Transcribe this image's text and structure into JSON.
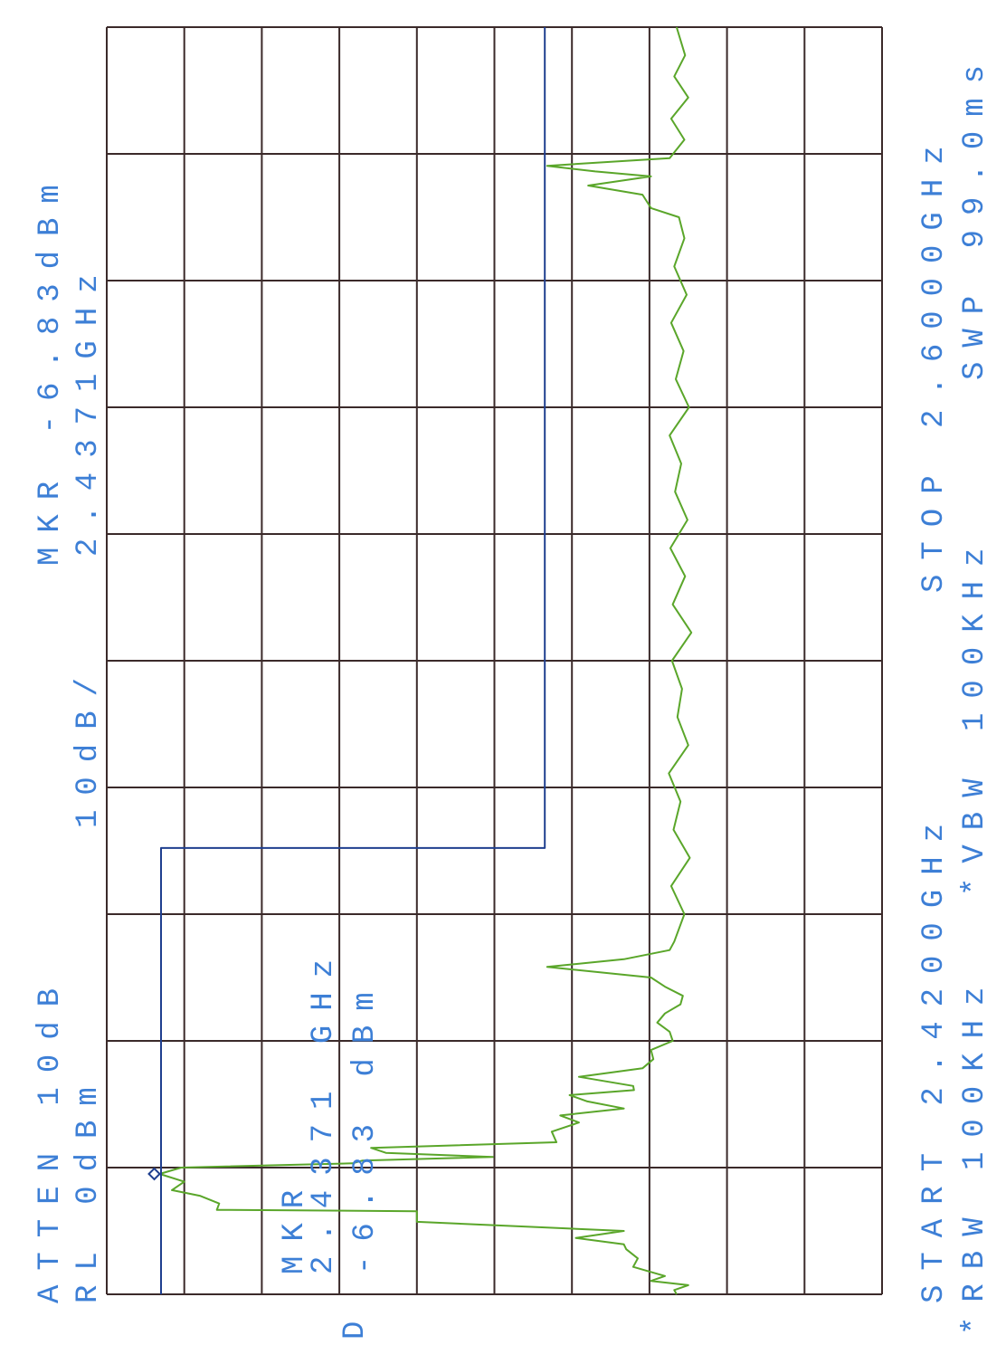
{
  "chart_data": {
    "type": "line",
    "xlim": [
      2.42,
      2.6
    ],
    "ylim": [
      -100,
      0
    ],
    "texts": {
      "atten": "ATTEN 10dB",
      "rl": "RL 0dBm",
      "scale": "10dB/",
      "mkr_top": "MKR -6.83dBm",
      "mkr_top_freq": "2.4371GHz",
      "mkr_box_title": "MKR",
      "mkr_box_freq": "2.4371 GHz",
      "mkr_box_level": "-6.83 dBm",
      "detector": "D",
      "start": "START 2.4200GHz",
      "stop": "STOP 2.6000GHz",
      "rbw": "*RBW 100KHz",
      "vbw": "*VBW 100KHz",
      "sweep": "SWP 99.0ms"
    },
    "marker": {
      "x": 2.4371,
      "value": -6.83,
      "color": "#1f3f8f"
    },
    "series": [
      {
        "color": "#5aa62a",
        "x": [
          2.42,
          2.4206,
          2.4213,
          2.4219,
          2.4226,
          2.4239,
          2.4251,
          2.4264,
          2.4271,
          2.428,
          2.429,
          2.4303,
          2.4318,
          2.432,
          2.4329,
          2.434,
          2.4348,
          2.436,
          2.4371,
          2.438,
          2.4386,
          2.439,
          2.4395,
          2.4401,
          2.4408,
          2.4416,
          2.4431,
          2.4444,
          2.4454,
          2.4464,
          2.4474,
          2.4483,
          2.449,
          2.4496,
          2.4509,
          2.4521,
          2.4534,
          2.4547,
          2.456,
          2.4573,
          2.4586,
          2.4599,
          2.4612,
          2.4624,
          2.4637,
          2.465,
          2.4665,
          2.4676,
          2.4689,
          2.4701,
          2.474,
          2.478,
          2.482,
          2.486,
          2.49,
          2.494,
          2.498,
          2.502,
          2.506,
          2.51,
          2.514,
          2.518,
          2.522,
          2.526,
          2.53,
          2.534,
          2.538,
          2.542,
          2.546,
          2.55,
          2.554,
          2.558,
          2.562,
          2.566,
          2.57,
          2.573,
          2.5743,
          2.5762,
          2.5775,
          2.5788,
          2.5795,
          2.5803,
          2.5814,
          2.584,
          2.587,
          2.59,
          2.593,
          2.596,
          2.6
        ],
        "values": [
          -73.5,
          -73.2,
          -75,
          -70.2,
          -72,
          -67.9,
          -68.5,
          -67,
          -66.7,
          -60.5,
          -66.7,
          -40,
          -40,
          -14.2,
          -14.5,
          -12,
          -8.4,
          -10,
          -6.83,
          -9.6,
          -31.7,
          -33,
          -49.8,
          -36,
          -34.1,
          -58,
          -57.4,
          -60.9,
          -58.5,
          -66.7,
          -62,
          -59.7,
          -68,
          -67.9,
          -60.9,
          -69.1,
          -70.5,
          -70.2,
          -73,
          -72.6,
          -71,
          -72,
          -74,
          -74.3,
          -72,
          -70.2,
          -56.8,
          -66.7,
          -72.6,
          -73.2,
          -74.5,
          -72.8,
          -75.2,
          -73.1,
          -74,
          -72.5,
          -75,
          -73.6,
          -74.2,
          -72.9,
          -75.4,
          -73,
          -74.6,
          -72.7,
          -74.9,
          -73.3,
          -74.1,
          -72.6,
          -75.1,
          -73.4,
          -74.4,
          -72.8,
          -74.8,
          -73.2,
          -74.5,
          -73.8,
          -70.2,
          -69.1,
          -62.1,
          -70.2,
          -63,
          -56.8,
          -72.6,
          -74.5,
          -72.8,
          -75,
          -73.2,
          -74.6,
          -73.5
        ]
      },
      {
        "color": "#1f3f8f",
        "x": [
          2.42,
          2.4834,
          2.4834,
          2.6
        ],
        "values": [
          -7,
          -7,
          -56.5,
          -56.5
        ]
      }
    ]
  }
}
